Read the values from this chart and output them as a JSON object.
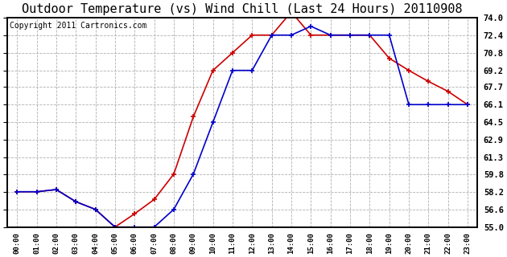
{
  "title": "Outdoor Temperature (vs) Wind Chill (Last 24 Hours) 20110908",
  "copyright": "Copyright 2011 Cartronics.com",
  "hours": [
    "00:00",
    "01:00",
    "02:00",
    "03:00",
    "04:00",
    "05:00",
    "06:00",
    "07:00",
    "08:00",
    "09:00",
    "10:00",
    "11:00",
    "12:00",
    "13:00",
    "14:00",
    "15:00",
    "16:00",
    "17:00",
    "18:00",
    "19:00",
    "20:00",
    "21:00",
    "22:00",
    "23:00"
  ],
  "temp": [
    58.2,
    58.2,
    58.4,
    57.3,
    56.6,
    55.0,
    56.2,
    57.5,
    59.8,
    65.0,
    69.2,
    70.8,
    72.4,
    72.4,
    74.5,
    72.4,
    72.4,
    72.4,
    72.4,
    70.3,
    69.2,
    68.2,
    67.3,
    66.1
  ],
  "windchill": [
    58.2,
    58.2,
    58.4,
    57.3,
    56.6,
    55.0,
    55.0,
    55.0,
    56.6,
    59.8,
    64.5,
    69.2,
    69.2,
    72.4,
    72.4,
    73.2,
    72.4,
    72.4,
    72.4,
    72.4,
    66.1,
    66.1,
    66.1,
    66.1
  ],
  "temp_color": "#cc0000",
  "windchill_color": "#0000cc",
  "ylim": [
    55.0,
    74.0
  ],
  "yticks": [
    55.0,
    56.6,
    58.2,
    59.8,
    61.3,
    62.9,
    64.5,
    66.1,
    67.7,
    69.2,
    70.8,
    72.4,
    74.0
  ],
  "bg_color": "#ffffff",
  "plot_bg": "#ffffff",
  "grid_color": "#b0b0b0",
  "title_fontsize": 11,
  "copyright_fontsize": 7,
  "marker_color": "#cc0000",
  "marker_color_blue": "#0000cc"
}
